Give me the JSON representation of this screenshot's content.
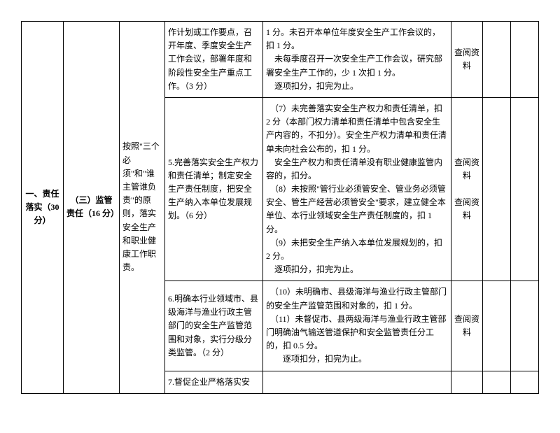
{
  "category": {
    "title": "一、责任落实（30 分）"
  },
  "subcategory": {
    "title": "（三）监管责任（16 分）"
  },
  "principle": {
    "text": "按照\"三个必须\"和\"谁主管谁负责\"的原则，落实安全生产和职业健康工作职责。"
  },
  "rows": [
    {
      "item": "作计划或工作要点，召开年度、季度安全生产工作会议，部署年度和阶段性安全生产重点工作。（3 分）",
      "criteria": "1 分。未召开本单位年度安全生产工作会议的，扣 1 分。\n　未每季度召开一次安全生产工作会议，研究部署安全生产工作的，少 1 次扣 1 分。\n　逐项扣分，扣完为止。",
      "method": "查阅资料"
    },
    {
      "item": "5.完善落实安全生产权力和责任清单；制定安全生产责任制度，把安全生产纳入本单位发展规划。（6 分）",
      "criteria": "　（7）未完善落实安全生产权力和责任清单，扣 2 分（本部门权力清单和责任清单中包含安全生产内容的，不扣分）。安全生产权力清单和责任清单未向社会公布的，扣 1 分。\n　安全生产权力和责任清单没有职业健康监管内容的，扣分。\n　（8）未按照\"管行业必须管安全、管业务必须管安全、管生产经营必须管安全\"要求，建立健全本单位、本行业领域安全生产责任制度的，扣 1 分。\n　（9）未把安全生产纳入本单位发展规划的，扣 2 分。\n　逐项扣分，扣完为止。",
      "method": "查阅资料\n\n查阅资料"
    },
    {
      "item": "6.明确本行业领域市、县级海洋与渔业行政主管部门的安全生产监管范围和对象，实行分级分类监管。（2 分）",
      "criteria": "　（10）未明确市、县级海洋与渔业行政主管部门的安全生产监管范围和对象的，扣 1 分。\n　（11）未督促市、县两级海洋与渔业行政主管部门明确油气输送管道保护和安全监管责任分工的，扣 0.5 分。\n　　逐项扣分，扣完为止。",
      "method": "查阅资料"
    },
    {
      "item": "7.督促企业严格落实安",
      "criteria": "",
      "method": ""
    }
  ]
}
